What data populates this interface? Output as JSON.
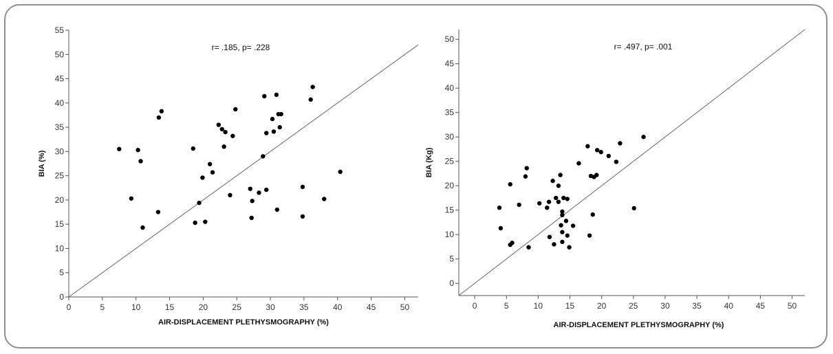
{
  "colors": {
    "frame": "#8f8f8f",
    "axis": "#555555",
    "point": "#000000",
    "line": "#666666"
  },
  "chart_data": [
    {
      "type": "scatter",
      "title": "",
      "annotation": "r= .185, p= .228",
      "xlabel": "AIR-DISPLACEMENT PLETHYSMOGRAPHY (%)",
      "ylabel": "BIA (%)",
      "xlim": [
        0,
        52
      ],
      "ylim": [
        0,
        55
      ],
      "xticks": [
        "0",
        "5",
        "10",
        "15",
        "20",
        "25",
        "30",
        "35",
        "40",
        "45",
        "50"
      ],
      "xtick_values": [
        0,
        5,
        10,
        15,
        20,
        25,
        30,
        35,
        40,
        45,
        50
      ],
      "yticks": [
        "0",
        "5",
        "10",
        "15",
        "20",
        "25",
        "30",
        "35",
        "40",
        "45",
        "50",
        "55"
      ],
      "ytick_values": [
        0,
        5,
        10,
        15,
        20,
        25,
        30,
        35,
        40,
        45,
        50,
        55
      ],
      "identity_line": [
        [
          0,
          0
        ],
        [
          52,
          52
        ]
      ],
      "points": [
        [
          7.5,
          30.5
        ],
        [
          9.3,
          20.3
        ],
        [
          10.3,
          30.3
        ],
        [
          10.7,
          28
        ],
        [
          11,
          14.3
        ],
        [
          13.3,
          17.5
        ],
        [
          13.4,
          37
        ],
        [
          13.8,
          38.3
        ],
        [
          18.5,
          30.6
        ],
        [
          18.8,
          15.3
        ],
        [
          19.4,
          19.4
        ],
        [
          19.9,
          24.6
        ],
        [
          20.3,
          15.5
        ],
        [
          21,
          27.4
        ],
        [
          21.4,
          25.7
        ],
        [
          22.3,
          35.5
        ],
        [
          22.8,
          34.6
        ],
        [
          23.1,
          31
        ],
        [
          23.3,
          34
        ],
        [
          24,
          21
        ],
        [
          24.4,
          33.2
        ],
        [
          24.8,
          38.7
        ],
        [
          27,
          22.3
        ],
        [
          27.2,
          16.3
        ],
        [
          27.3,
          19.8
        ],
        [
          28.3,
          21.5
        ],
        [
          28.9,
          29
        ],
        [
          29.1,
          41.4
        ],
        [
          29.4,
          33.8
        ],
        [
          29.4,
          22.1
        ],
        [
          30.3,
          36.7
        ],
        [
          30.5,
          34.1
        ],
        [
          30.9,
          41.7
        ],
        [
          31,
          18
        ],
        [
          31.2,
          37.7
        ],
        [
          31.4,
          35
        ],
        [
          31.6,
          37.7
        ],
        [
          34.8,
          22.7
        ],
        [
          34.8,
          16.6
        ],
        [
          36,
          40.7
        ],
        [
          36.3,
          43.3
        ],
        [
          38,
          20.2
        ],
        [
          40.4,
          25.8
        ]
      ]
    },
    {
      "type": "scatter",
      "title": "",
      "annotation": "r= .497, p= .001",
      "xlabel": "AIR-DISPLACEMENT PLETHYSMOGRAPHY (%)",
      "ylabel": "BIA (Kg)",
      "xlim": [
        -2.5,
        52
      ],
      "ylim": [
        -2.5,
        52
      ],
      "xticks": [
        "0",
        "5",
        "10",
        "15",
        "20",
        "25",
        "30",
        "35",
        "40",
        "45",
        "50"
      ],
      "xtick_values": [
        0,
        5,
        10,
        15,
        20,
        25,
        30,
        35,
        40,
        45,
        50
      ],
      "yticks": [
        "0",
        "5",
        "10",
        "15",
        "20",
        "25",
        "30",
        "35",
        "40",
        "45",
        "50"
      ],
      "ytick_values": [
        0,
        5,
        10,
        15,
        20,
        25,
        30,
        35,
        40,
        45,
        50
      ],
      "identity_line": [
        [
          -2.5,
          -2.5
        ],
        [
          52,
          52
        ]
      ],
      "points": [
        [
          3.9,
          15.5
        ],
        [
          4.1,
          11.3
        ],
        [
          5.6,
          7.9
        ],
        [
          5.6,
          20.3
        ],
        [
          5.9,
          8.3
        ],
        [
          7,
          16.1
        ],
        [
          8,
          21.9
        ],
        [
          8.2,
          23.6
        ],
        [
          8.5,
          7.4
        ],
        [
          10.2,
          16.4
        ],
        [
          11.4,
          15.5
        ],
        [
          11.7,
          16.7
        ],
        [
          11.8,
          9.5
        ],
        [
          12.3,
          21
        ],
        [
          12.5,
          8
        ],
        [
          12.8,
          17.5
        ],
        [
          13.2,
          20
        ],
        [
          13.2,
          16.7
        ],
        [
          13.5,
          22.2
        ],
        [
          13.6,
          11.9
        ],
        [
          13.8,
          14.7
        ],
        [
          13.8,
          14
        ],
        [
          13.8,
          10.5
        ],
        [
          13.8,
          8.5
        ],
        [
          14,
          17.5
        ],
        [
          14.4,
          12.8
        ],
        [
          14.6,
          17.3
        ],
        [
          14.6,
          9.8
        ],
        [
          14.9,
          7.4
        ],
        [
          15.5,
          11.8
        ],
        [
          16.4,
          24.6
        ],
        [
          17.8,
          28.1
        ],
        [
          18.1,
          9.8
        ],
        [
          18.3,
          22
        ],
        [
          18.6,
          14.1
        ],
        [
          18.8,
          21.8
        ],
        [
          19.2,
          22.2
        ],
        [
          19.3,
          27.3
        ],
        [
          19.9,
          26.9
        ],
        [
          21.1,
          26.1
        ],
        [
          22.3,
          24.9
        ],
        [
          22.9,
          28.7
        ],
        [
          25.1,
          15.4
        ],
        [
          26.6,
          30
        ]
      ]
    }
  ]
}
